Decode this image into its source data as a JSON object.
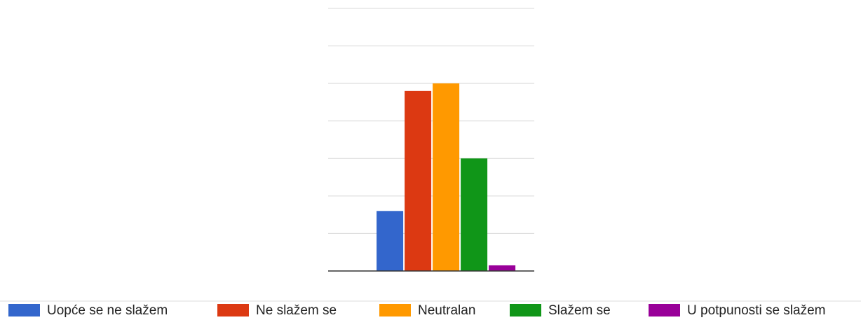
{
  "chart_data": {
    "type": "bar",
    "categories": [
      null
    ],
    "series": [
      {
        "name": "Uopće se ne slažem",
        "color": "#3366cc",
        "values": [
          1.6
        ]
      },
      {
        "name": "Ne slažem se",
        "color": "#dc3912",
        "values": [
          4.8
        ]
      },
      {
        "name": "Neutralan",
        "color": "#ff9900",
        "values": [
          5.0
        ]
      },
      {
        "name": "Slažem se",
        "color": "#109618",
        "values": [
          3.0
        ]
      },
      {
        "name": "U potpunosti se slažem",
        "color": "#990099",
        "values": [
          0.15
        ]
      }
    ],
    "ylim": [
      0,
      7
    ],
    "yticks": [
      0,
      1,
      2,
      3,
      4,
      5,
      6,
      7
    ],
    "grid": true,
    "legend": "bottom"
  }
}
